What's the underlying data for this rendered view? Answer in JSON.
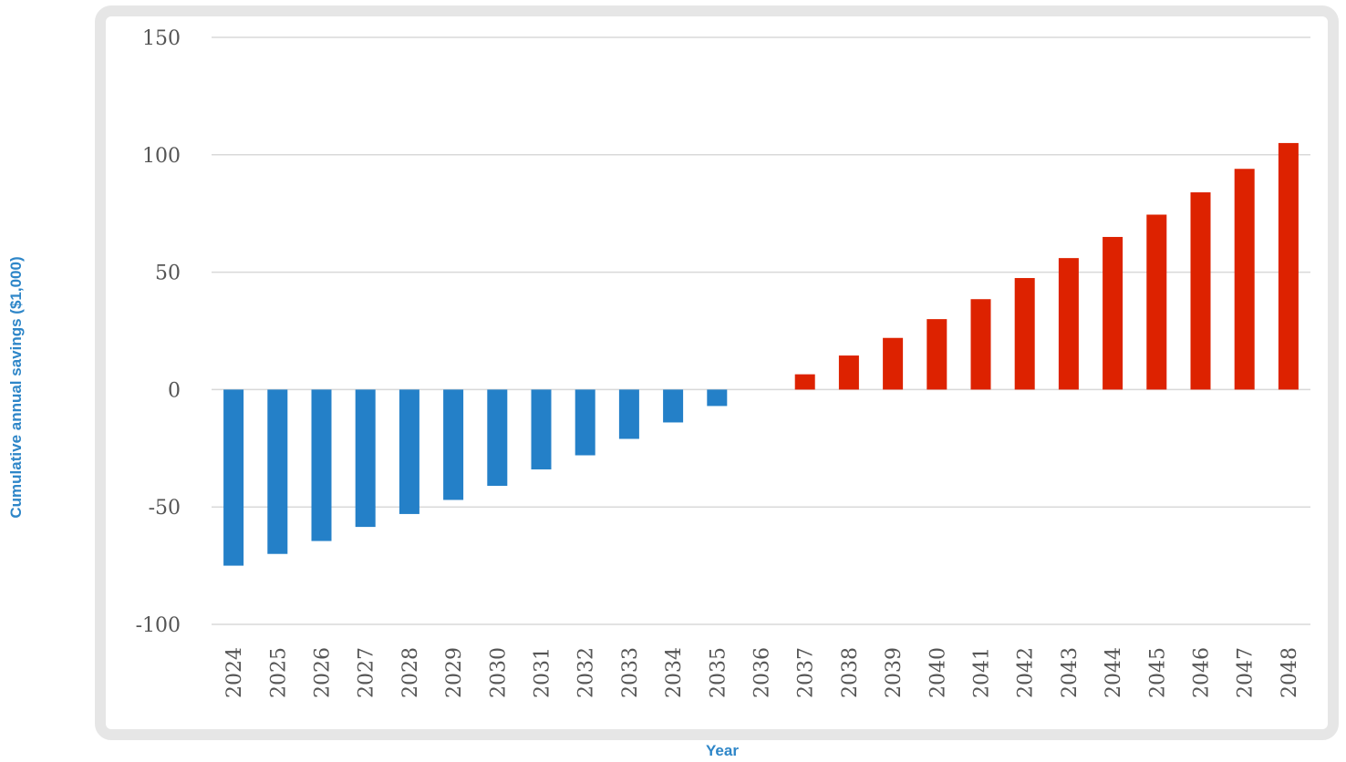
{
  "chart_data": {
    "type": "bar",
    "xlabel": "Year",
    "ylabel": "Cumulative annual savings ($1,000)",
    "ylim": [
      -100,
      150
    ],
    "yticks": [
      150,
      100,
      50,
      0,
      -50,
      -100
    ],
    "grid": true,
    "categories": [
      "2024",
      "2025",
      "2026",
      "2027",
      "2028",
      "2029",
      "2030",
      "2031",
      "2032",
      "2033",
      "2034",
      "2035",
      "2036",
      "2037",
      "2038",
      "2039",
      "2040",
      "2041",
      "2042",
      "2043",
      "2044",
      "2045",
      "2046",
      "2047",
      "2048"
    ],
    "values": [
      -75,
      -70,
      -64.5,
      -58.5,
      -53,
      -47,
      -41,
      -34,
      -28,
      -21,
      -14,
      -7,
      0,
      6.5,
      14.5,
      22,
      30,
      38.5,
      47.5,
      56,
      65,
      74.5,
      84,
      94,
      105
    ],
    "colors": {
      "negative": "#2480c8",
      "positive": "#dd2200",
      "grid": "#d9d9d9",
      "axis_text": "#555555",
      "label": "#2e86c8"
    }
  }
}
